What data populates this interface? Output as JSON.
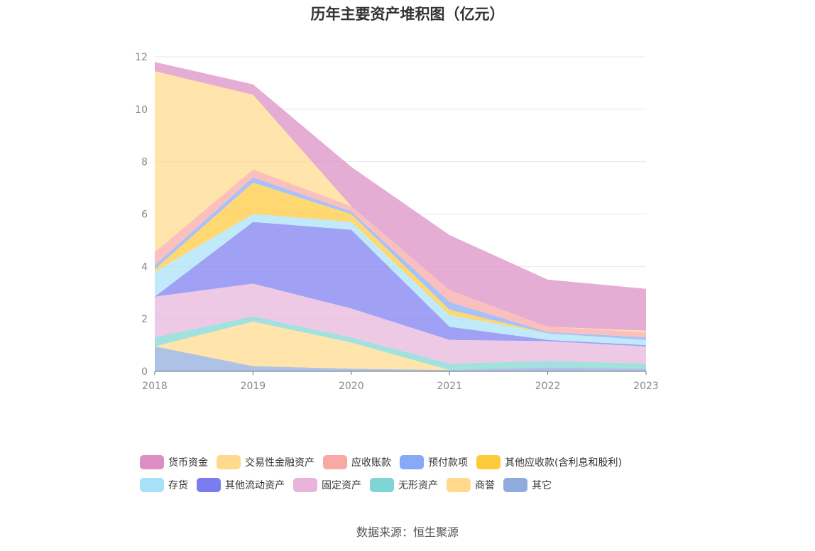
{
  "chart_data": {
    "type": "area",
    "stacked": true,
    "title": "历年主要资产堆积图（亿元）",
    "x": [
      "2018",
      "2019",
      "2020",
      "2021",
      "2022",
      "2023"
    ],
    "y_ticks": [
      "0",
      "2",
      "4",
      "6",
      "8",
      "10",
      "12"
    ],
    "ylim": [
      0,
      12
    ],
    "grid": true,
    "legend_position": "bottom",
    "series": [
      {
        "name": "其它",
        "color": "#8faadc",
        "values": [
          0.95,
          0.2,
          0.1,
          0.05,
          0.15,
          0.1
        ]
      },
      {
        "name": "商誉",
        "color": "#ffd98c",
        "values": [
          0.0,
          1.7,
          1.0,
          0.0,
          0.0,
          0.0
        ]
      },
      {
        "name": "无形资产",
        "color": "#7fd4d4",
        "values": [
          0.35,
          0.2,
          0.2,
          0.25,
          0.25,
          0.2
        ]
      },
      {
        "name": "固定资产",
        "color": "#e8b4dc",
        "values": [
          1.55,
          1.25,
          1.1,
          0.9,
          0.75,
          0.65
        ]
      },
      {
        "name": "其他流动资产",
        "color": "#7b7cf0",
        "values": [
          0.0,
          2.35,
          3.0,
          0.5,
          0.05,
          0.05
        ]
      },
      {
        "name": "存货",
        "color": "#a7e1f7",
        "values": [
          0.95,
          0.3,
          0.3,
          0.45,
          0.25,
          0.2
        ]
      },
      {
        "name": "其他应收款(含利息和股利)",
        "color": "#ffc93c",
        "values": [
          0.1,
          1.2,
          0.3,
          0.2,
          0.0,
          0.0
        ]
      },
      {
        "name": "预付款项",
        "color": "#88a9f7",
        "values": [
          0.15,
          0.2,
          0.1,
          0.3,
          0.05,
          0.1
        ]
      },
      {
        "name": "应收账款",
        "color": "#f9a8a3",
        "values": [
          0.5,
          0.3,
          0.2,
          0.45,
          0.2,
          0.2
        ]
      },
      {
        "name": "交易性金融资产",
        "color": "#ffd98c",
        "values": [
          6.9,
          2.85,
          0.0,
          0.0,
          0.0,
          0.05
        ]
      },
      {
        "name": "货币资金",
        "color": "#dc8ec4",
        "values": [
          0.35,
          0.4,
          1.5,
          2.1,
          1.8,
          1.6
        ]
      }
    ],
    "legend_order": [
      "货币资金",
      "交易性金融资产",
      "应收账款",
      "预付款项",
      "其他应收款(含利息和股利)",
      "存货",
      "其他流动资产",
      "固定资产",
      "无形资产",
      "商誉",
      "其它"
    ]
  },
  "footer": {
    "source": "数据来源：恒生聚源"
  }
}
